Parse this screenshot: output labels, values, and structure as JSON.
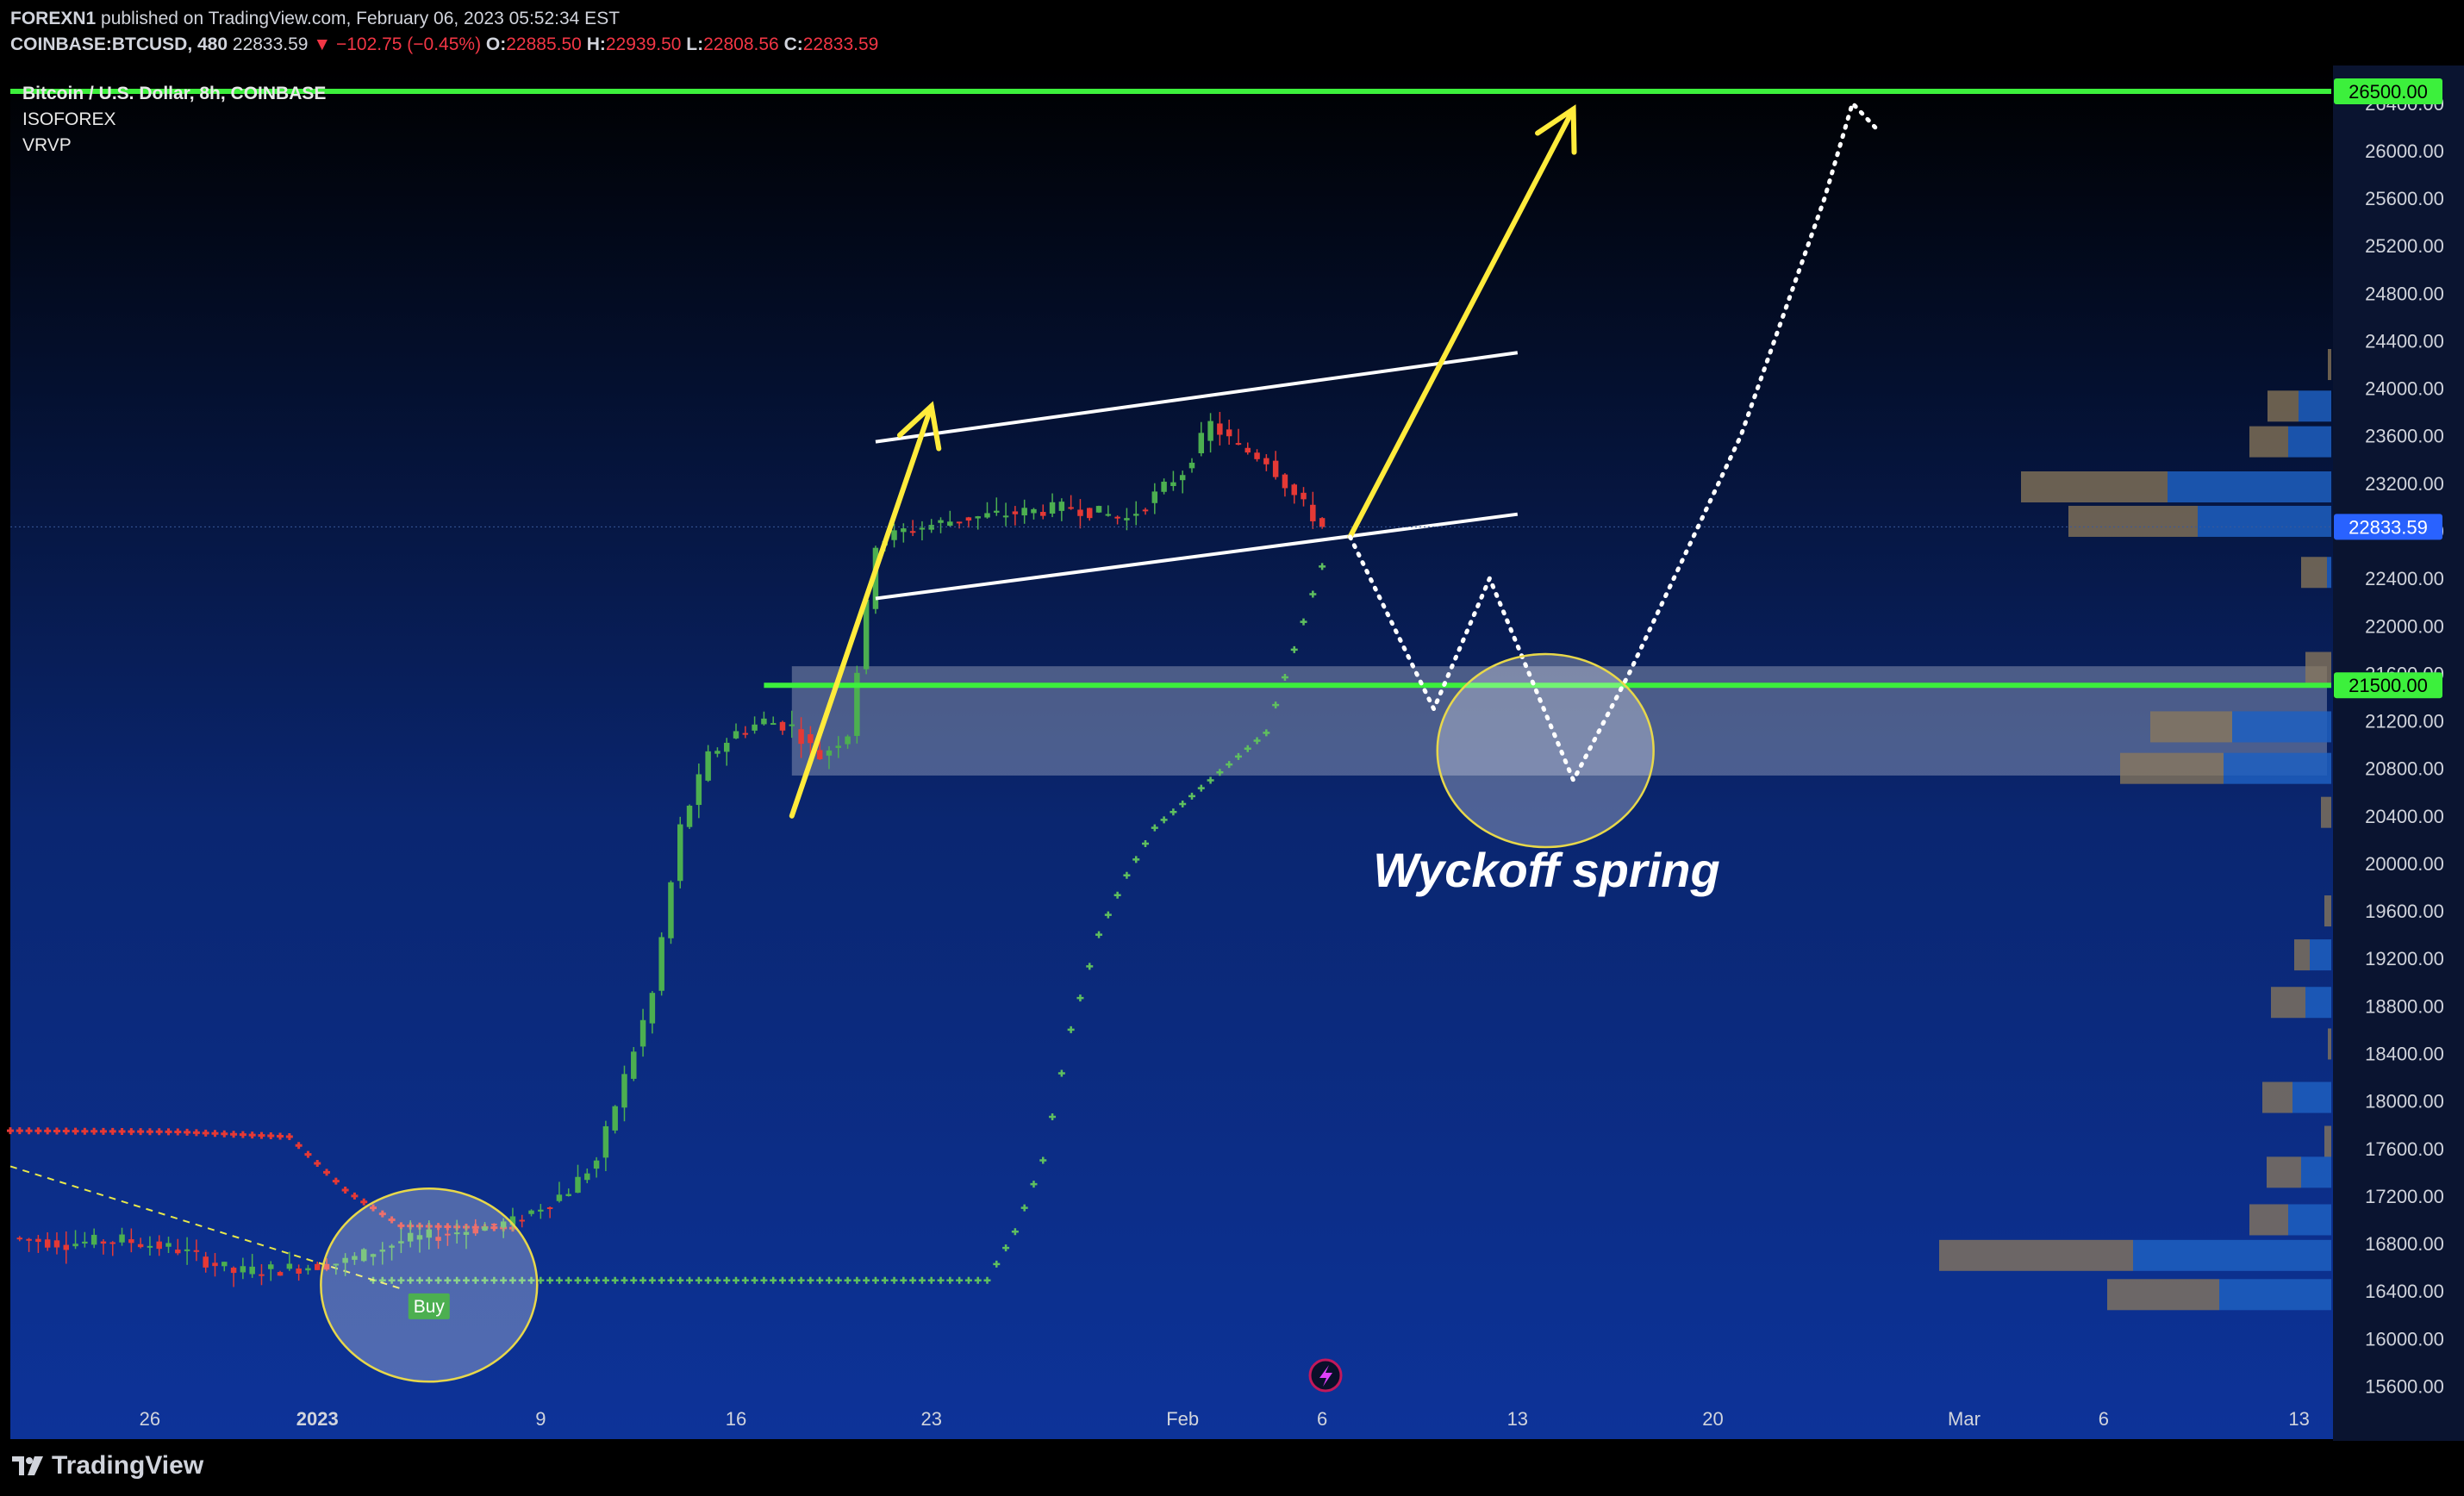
{
  "header": {
    "publisher": "FOREXN1",
    "published_text": "published on TradingView.com, February 06, 2023 05:52:34 EST",
    "symbol": "COINBASE:BTCUSD, 480",
    "last": "22833.59",
    "change": "▼ −102.75 (−0.45%)",
    "o_label": "O:",
    "o": "22885.50",
    "h_label": "H:",
    "h": "22939.50",
    "l_label": "L:",
    "l": "22808.56",
    "c_label": "C:",
    "c": "22833.59"
  },
  "legend": {
    "title": "Bitcoin / U.S. Dollar, 8h, COINBASE",
    "ind1": "ISOFOREX",
    "ind2": "VRVP"
  },
  "footer": {
    "brand": "TradingView"
  },
  "colors": {
    "bull": "#4caf50",
    "bear": "#e53935",
    "level": "#3cf03c",
    "arrow": "#ffeb3b",
    "channel": "#ffffff",
    "zone": "rgba(200,205,220,0.35)",
    "bg_top": "#000000",
    "bg_bottom": "#0d3399"
  },
  "chart_data": {
    "type": "candlestick",
    "y_ticks": [
      15600,
      16000,
      16400,
      16800,
      17200,
      17600,
      18000,
      18400,
      18800,
      19200,
      19600,
      20000,
      20400,
      20800,
      21200,
      21600,
      22000,
      22400,
      22800,
      23200,
      23600,
      24000,
      24400,
      24800,
      25200,
      25600,
      26000,
      26400
    ],
    "y_tick_labels": [
      "15600.00",
      "16000.00",
      "16400.00",
      "16800.00",
      "17200.00",
      "17600.00",
      "18000.00",
      "18400.00",
      "18800.00",
      "19200.00",
      "19600.00",
      "20000.00",
      "20400.00",
      "20800.00",
      "21200.00",
      "21600.00",
      "22000.00",
      "22400.00",
      "22800.00",
      "23200.00",
      "23600.00",
      "24000.00",
      "24400.00",
      "24800.00",
      "25200.00",
      "25600.00",
      "26000.00",
      "26400.00"
    ],
    "ylim": [
      15400,
      26500
    ],
    "x_ticks": [
      {
        "label": "26",
        "date": "2022-12-26"
      },
      {
        "label": "2023",
        "date": "2023-01-01",
        "bold": true
      },
      {
        "label": "9",
        "date": "2023-01-09"
      },
      {
        "label": "16",
        "date": "2023-01-16"
      },
      {
        "label": "23",
        "date": "2023-01-23"
      },
      {
        "label": "Feb",
        "date": "2023-02-01"
      },
      {
        "label": "6",
        "date": "2023-02-06"
      },
      {
        "label": "13",
        "date": "2023-02-13"
      },
      {
        "label": "20",
        "date": "2023-02-20"
      },
      {
        "label": "Mar",
        "date": "2023-03-01"
      },
      {
        "label": "6",
        "date": "2023-03-06"
      },
      {
        "label": "13",
        "date": "2023-03-13"
      }
    ],
    "xlim": [
      "2022-12-21",
      "2023-03-14"
    ],
    "level_lines": [
      {
        "price": 26500,
        "label": "26500.00"
      },
      {
        "price": 21500,
        "label": "21500.00"
      }
    ],
    "last_price": {
      "price": 22833.59,
      "label": "22833.59"
    },
    "price_path": [
      [
        "2022-12-21",
        16850
      ],
      [
        "2022-12-23",
        16800
      ],
      [
        "2022-12-25",
        16830
      ],
      [
        "2022-12-27",
        16750
      ],
      [
        "2022-12-29",
        16560
      ],
      [
        "2022-12-31",
        16590
      ],
      [
        "2023-01-02",
        16650
      ],
      [
        "2023-01-04",
        16820
      ],
      [
        "2023-01-06",
        16900
      ],
      [
        "2023-01-08",
        16980
      ],
      [
        "2023-01-10",
        17250
      ],
      [
        "2023-01-11",
        17500
      ],
      [
        "2023-01-12",
        18200
      ],
      [
        "2023-01-13",
        18900
      ],
      [
        "2023-01-14",
        20300
      ],
      [
        "2023-01-15",
        20900
      ],
      [
        "2023-01-16",
        21100
      ],
      [
        "2023-01-17",
        21200
      ],
      [
        "2023-01-18",
        21150
      ],
      [
        "2023-01-19",
        20900
      ],
      [
        "2023-01-20",
        21100
      ],
      [
        "2023-01-21",
        22700
      ],
      [
        "2023-01-22",
        22800
      ],
      [
        "2023-01-24",
        22900
      ],
      [
        "2023-01-26",
        22950
      ],
      [
        "2023-01-28",
        23000
      ],
      [
        "2023-01-30",
        22900
      ],
      [
        "2023-02-01",
        23300
      ],
      [
        "2023-02-02",
        23700
      ],
      [
        "2023-02-03",
        23500
      ],
      [
        "2023-02-04",
        23400
      ],
      [
        "2023-02-05",
        23100
      ],
      [
        "2023-02-06",
        22834
      ]
    ],
    "ribbon_red": [
      [
        "2022-12-21",
        17750
      ],
      [
        "2022-12-27",
        17740
      ],
      [
        "2022-12-31",
        17700
      ],
      [
        "2023-01-02",
        17250
      ],
      [
        "2023-01-04",
        16950
      ],
      [
        "2023-01-08",
        16930
      ]
    ],
    "ribbon_green": [
      [
        "2023-01-03",
        16490
      ],
      [
        "2023-01-25",
        16490
      ],
      [
        "2023-01-26",
        16900
      ],
      [
        "2023-01-27",
        17500
      ],
      [
        "2023-01-28",
        18600
      ],
      [
        "2023-01-29",
        19400
      ],
      [
        "2023-01-30",
        19900
      ],
      [
        "2023-01-31",
        20300
      ],
      [
        "2023-02-02",
        20700
      ],
      [
        "2023-02-04",
        21100
      ],
      [
        "2023-02-05",
        21800
      ],
      [
        "2023-02-06",
        22500
      ]
    ],
    "trend_dashed": [
      [
        "2022-12-21",
        17450
      ],
      [
        "2023-01-04",
        16420
      ]
    ],
    "zone": {
      "from": "2023-01-18",
      "to": "2023-03-14",
      "low": 20740,
      "high": 21660
    },
    "channel": [
      {
        "from": [
          "2023-01-21",
          23550
        ],
        "to": [
          "2023-02-13",
          24300
        ]
      },
      {
        "from": [
          "2023-01-21",
          22230
        ],
        "to": [
          "2023-02-13",
          22940
        ]
      }
    ],
    "arrows": [
      {
        "from": [
          "2023-01-18",
          20400
        ],
        "to": [
          "2023-01-23",
          23850
        ]
      },
      {
        "from": [
          "2023-02-07",
          22750
        ],
        "to": [
          "2023-02-15",
          26350
        ]
      }
    ],
    "dotted_path": [
      [
        "2023-02-07",
        22750
      ],
      [
        "2023-02-10",
        21300
      ],
      [
        "2023-02-12",
        22400
      ],
      [
        "2023-02-15",
        20700
      ],
      [
        "2023-02-17",
        21600
      ],
      [
        "2023-02-21",
        23600
      ],
      [
        "2023-02-24",
        25600
      ],
      [
        "2023-02-25",
        26400
      ],
      [
        "2023-02-26",
        26150
      ]
    ],
    "circles": [
      {
        "center": [
          "2023-01-05",
          16450
        ],
        "ry_price": 420
      },
      {
        "center": [
          "2023-02-14",
          20950
        ],
        "ry_price": 420
      }
    ],
    "annotations": [
      {
        "text": "Wyckoff spring",
        "at": [
          "2023-02-14",
          19950
        ]
      },
      {
        "text": "Buy",
        "at": [
          "2023-01-05",
          16250
        ]
      }
    ],
    "volume_profile": [
      {
        "price": 24200,
        "a": 4,
        "b": 0
      },
      {
        "price": 23850,
        "a": 36,
        "b": 38
      },
      {
        "price": 23550,
        "a": 45,
        "b": 50
      },
      {
        "price": 23170,
        "a": 170,
        "b": 190
      },
      {
        "price": 22880,
        "a": 150,
        "b": 155
      },
      {
        "price": 22450,
        "a": 30,
        "b": 5
      },
      {
        "price": 21650,
        "a": 30,
        "b": 0
      },
      {
        "price": 21150,
        "a": 95,
        "b": 115
      },
      {
        "price": 20800,
        "a": 120,
        "b": 125
      },
      {
        "price": 20430,
        "a": 12,
        "b": 0
      },
      {
        "price": 19600,
        "a": 8,
        "b": 0
      },
      {
        "price": 19230,
        "a": 18,
        "b": 25
      },
      {
        "price": 18830,
        "a": 40,
        "b": 30
      },
      {
        "price": 18480,
        "a": 4,
        "b": 0
      },
      {
        "price": 18030,
        "a": 35,
        "b": 45
      },
      {
        "price": 17660,
        "a": 8,
        "b": 0
      },
      {
        "price": 17400,
        "a": 40,
        "b": 35
      },
      {
        "price": 17000,
        "a": 45,
        "b": 50
      },
      {
        "price": 16700,
        "a": 225,
        "b": 230
      },
      {
        "price": 16370,
        "a": 130,
        "b": 130
      }
    ]
  }
}
